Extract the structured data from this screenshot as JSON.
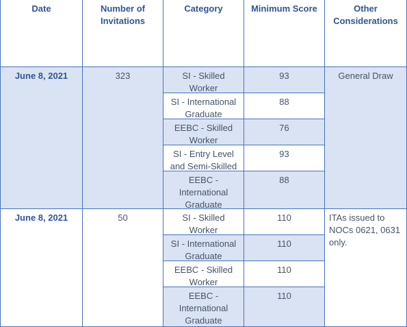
{
  "table": {
    "header": [
      "Date",
      "Number of Invitations",
      "Category",
      "Minimum Score",
      "Other Considerations"
    ],
    "groups": [
      {
        "date": "June 8, 2021",
        "invitations": 323,
        "other": "General Draw",
        "rows": [
          {
            "category": "SI - Skilled Worker",
            "score": 93
          },
          {
            "category": "SI - International Graduate",
            "score": 88
          },
          {
            "category": "EEBC - Skilled Worker",
            "score": 76
          },
          {
            "category": "SI - Entry Level and Semi-Skilled",
            "score": 93
          },
          {
            "category": "EEBC - International Graduate",
            "score": 88
          }
        ]
      },
      {
        "date": "June 8, 2021",
        "invitations": 50,
        "other": "ITAs issued to NOCs 0621, 0631 only.",
        "rows": [
          {
            "category": "SI - Skilled Worker",
            "score": 110
          },
          {
            "category": "SI - International Graduate",
            "score": 110
          },
          {
            "category": "EEBC - Skilled Worker",
            "score": 110
          },
          {
            "category": "EEBC - International Graduate",
            "score": 110
          }
        ]
      }
    ]
  }
}
